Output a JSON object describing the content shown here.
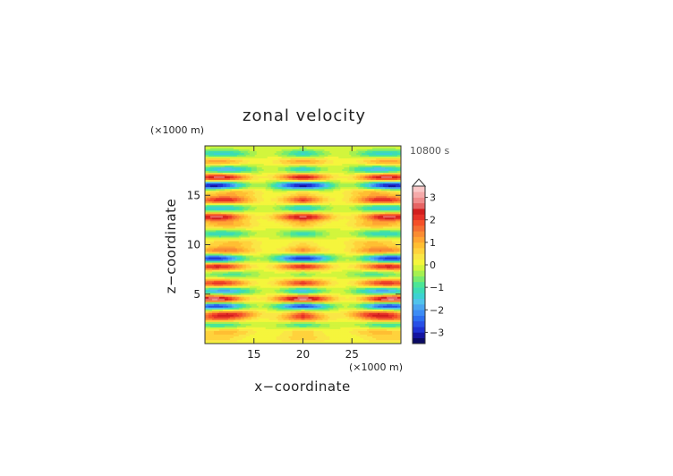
{
  "chart_data": {
    "type": "heatmap",
    "title": "zonal velocity",
    "xlabel": "x−coordinate",
    "ylabel": "z−coordinate",
    "x_unit_label": "(×1000 m)",
    "y_unit_label": "(×1000 m)",
    "time_label": "10800 s",
    "xlim": [
      10,
      30
    ],
    "ylim": [
      0,
      20
    ],
    "x_ticks": [
      15,
      20,
      25
    ],
    "x_tick_labels": [
      "15",
      "20",
      "25"
    ],
    "y_ticks": [
      5,
      10,
      15
    ],
    "y_tick_labels": [
      "5",
      "10",
      "15"
    ],
    "colorbar": {
      "levels": [
        -3.5,
        -3.25,
        -3,
        -2.75,
        -2.5,
        -2.25,
        -2,
        -1.75,
        -1.5,
        -1.25,
        -1,
        -0.75,
        -0.5,
        -0.25,
        0,
        0.25,
        0.5,
        0.75,
        1,
        1.25,
        1.5,
        1.75,
        2,
        2.25,
        2.5,
        2.75,
        3,
        3.25,
        3.5
      ],
      "colors": [
        "#0a0a64",
        "#1414a0",
        "#1e32d2",
        "#2850e6",
        "#2d6ef0",
        "#3c8cf5",
        "#4aa5f0",
        "#50c3eb",
        "#3cd2d2",
        "#3cdcb4",
        "#4be696",
        "#78eb6e",
        "#a5f050",
        "#d2f53c",
        "#f5f53c",
        "#fae646",
        "#ffd23c",
        "#ffbe32",
        "#ffa532",
        "#fa8c32",
        "#f56e32",
        "#f55028",
        "#e63228",
        "#d21e1e",
        "#e66464",
        "#f08c8c",
        "#f5aaaa",
        "#fac8c8"
      ],
      "tick_values": [
        3,
        2,
        1,
        0,
        -1,
        -2,
        -3
      ],
      "tick_labels": [
        "3",
        "2",
        "1",
        "0",
        "−1",
        "−2",
        "−3"
      ],
      "extend": "max"
    },
    "bands": [
      {
        "z": 0.5,
        "amp": 0.6,
        "phase": 0.0
      },
      {
        "z": 1.2,
        "amp": 0.9,
        "phase": 0.8
      },
      {
        "z": 1.9,
        "amp": -1.2,
        "phase": 0.3
      },
      {
        "z": 2.5,
        "amp": 1.5,
        "phase": 0.2
      },
      {
        "z": 3.0,
        "amp": 2.0,
        "phase": 1.0
      },
      {
        "z": 3.8,
        "amp": -2.9,
        "phase": 0.1
      },
      {
        "z": 4.5,
        "amp": 3.1,
        "phase": 0.0
      },
      {
        "z": 5.3,
        "amp": -2.0,
        "phase": 0.6
      },
      {
        "z": 6.1,
        "amp": 2.2,
        "phase": 0.3
      },
      {
        "z": 7.0,
        "amp": -0.9,
        "phase": 1.1
      },
      {
        "z": 7.8,
        "amp": 2.4,
        "phase": 0.2
      },
      {
        "z": 8.6,
        "amp": -3.0,
        "phase": 0.0
      },
      {
        "z": 9.4,
        "amp": 1.6,
        "phase": 0.7
      },
      {
        "z": 10.2,
        "amp": 0.8,
        "phase": 1.3
      },
      {
        "z": 11.1,
        "amp": -1.3,
        "phase": 0.5
      },
      {
        "z": 12.0,
        "amp": 1.0,
        "phase": 0.9
      },
      {
        "z": 12.8,
        "amp": 2.6,
        "phase": 0.1
      },
      {
        "z": 13.7,
        "amp": -1.6,
        "phase": 0.4
      },
      {
        "z": 14.5,
        "amp": 2.3,
        "phase": 0.6
      },
      {
        "z": 15.3,
        "amp": 1.0,
        "phase": 1.2
      },
      {
        "z": 16.0,
        "amp": -3.3,
        "phase": 0.0
      },
      {
        "z": 16.8,
        "amp": 2.7,
        "phase": 0.3
      },
      {
        "z": 17.6,
        "amp": -1.8,
        "phase": 0.8
      },
      {
        "z": 18.4,
        "amp": 1.2,
        "phase": 0.2
      },
      {
        "z": 19.2,
        "amp": -1.4,
        "phase": 0.5
      }
    ],
    "x_period": 9.0,
    "symmetry_axis_x": 20.0
  }
}
